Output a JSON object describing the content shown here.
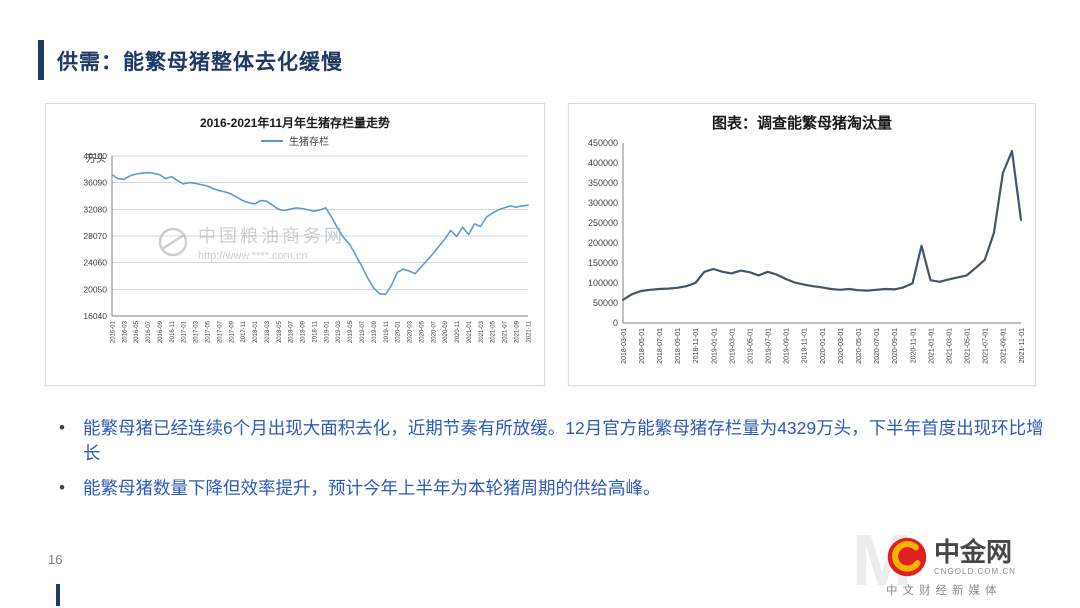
{
  "header": {
    "title": "供需：能繁母猪整体去化缓慢"
  },
  "chart_data": [
    {
      "type": "line",
      "title": "2016-2021年11月年生猪存栏量走势",
      "ylabel": "万头",
      "xlabel": "",
      "ylim": [
        16040,
        40100
      ],
      "yticks": [
        16040,
        20050,
        24060,
        28070,
        32080,
        36090,
        40100
      ],
      "grid": true,
      "legend_position": "top",
      "xtick_every": 2,
      "x": [
        "2016-01",
        "2016-02",
        "2016-03",
        "2016-04",
        "2016-05",
        "2016-06",
        "2016-07",
        "2016-08",
        "2016-09",
        "2016-10",
        "2016-11",
        "2016-12",
        "2017-01",
        "2017-02",
        "2017-03",
        "2017-04",
        "2017-05",
        "2017-06",
        "2017-07",
        "2017-08",
        "2017-09",
        "2017-10",
        "2017-11",
        "2017-12",
        "2018-01",
        "2018-02",
        "2018-03",
        "2018-04",
        "2018-05",
        "2018-06",
        "2018-07",
        "2018-08",
        "2018-09",
        "2018-10",
        "2018-11",
        "2018-12",
        "2019-01",
        "2019-02",
        "2019-03",
        "2019-04",
        "2019-05",
        "2019-06",
        "2019-07",
        "2019-08",
        "2019-09",
        "2019-10",
        "2019-11",
        "2019-12",
        "2020-01",
        "2020-02",
        "2020-03",
        "2020-04",
        "2020-05",
        "2020-06",
        "2020-07",
        "2020-08",
        "2020-09",
        "2020-10",
        "2020-11",
        "2020-12",
        "2021-01",
        "2021-02",
        "2021-03",
        "2021-04",
        "2021-05",
        "2021-06",
        "2021-07",
        "2021-08",
        "2021-09",
        "2021-10",
        "2021-11"
      ],
      "series": [
        {
          "name": "生猪存栏",
          "color": "#5B9BD5",
          "values": [
            37300,
            36700,
            36600,
            37100,
            37400,
            37500,
            37600,
            37500,
            37300,
            36700,
            37000,
            36400,
            35900,
            36100,
            36000,
            35800,
            35600,
            35200,
            34900,
            34700,
            34400,
            33900,
            33400,
            33100,
            32900,
            33400,
            33300,
            32700,
            32100,
            31900,
            32100,
            32300,
            32200,
            32000,
            31800,
            32000,
            32300,
            30800,
            29200,
            27800,
            26800,
            25200,
            23600,
            21800,
            20300,
            19400,
            19300,
            20600,
            22600,
            23100,
            22800,
            22400,
            23400,
            24400,
            25400,
            26500,
            27600,
            28900,
            28000,
            29400,
            28300,
            29900,
            29500,
            30900,
            31500,
            32000,
            32300,
            32600,
            32400,
            32600,
            32700
          ]
        }
      ]
    },
    {
      "type": "line",
      "title": "图表：调查能繁母猪淘汰量",
      "ylabel": "",
      "xlabel": "",
      "ylim": [
        0,
        450000
      ],
      "yticks": [
        0,
        50000,
        100000,
        150000,
        200000,
        250000,
        300000,
        350000,
        400000,
        450000
      ],
      "grid": false,
      "xtick_every": 2,
      "x": [
        "2018-03-01",
        "2018-04-01",
        "2018-05-01",
        "2018-06-01",
        "2018-07-01",
        "2018-08-01",
        "2018-09-01",
        "2018-10-01",
        "2018-11-01",
        "2018-12-01",
        "2019-01-01",
        "2019-02-01",
        "2019-03-01",
        "2019-04-01",
        "2019-05-01",
        "2019-06-01",
        "2019-07-01",
        "2019-08-01",
        "2019-09-01",
        "2019-10-01",
        "2019-11-01",
        "2019-12-01",
        "2020-01-01",
        "2020-02-01",
        "2020-03-01",
        "2020-04-01",
        "2020-05-01",
        "2020-06-01",
        "2020-07-01",
        "2020-08-01",
        "2020-09-01",
        "2020-10-01",
        "2020-11-01",
        "2020-12-01",
        "2021-01-01",
        "2021-02-01",
        "2021-03-01",
        "2021-04-01",
        "2021-05-01",
        "2021-06-01",
        "2021-07-01",
        "2021-08-01",
        "2021-09-01",
        "2021-10-01",
        "2021-11-01"
      ],
      "series": [
        {
          "name": "调查能繁母猪淘汰量",
          "color": "#44546A",
          "values": [
            58000,
            72000,
            80000,
            83000,
            85000,
            86000,
            88000,
            92000,
            100000,
            128000,
            135000,
            128000,
            124000,
            131000,
            127000,
            119000,
            128000,
            121000,
            110000,
            101000,
            96000,
            92000,
            89000,
            85000,
            83000,
            85000,
            82000,
            81000,
            83000,
            85000,
            84000,
            89000,
            99000,
            193000,
            107000,
            103000,
            109000,
            114000,
            119000,
            138000,
            158000,
            225000,
            375000,
            430000,
            258000
          ]
        }
      ]
    }
  ],
  "watermark": {
    "site_name": "中国粮油商务网",
    "site_url": "http://www.****.com.cn"
  },
  "bullets": [
    "能繁母猪已经连续6个月出现大面积去化，近期节奏有所放缓。12月官方能繁母猪存栏量为4329万头，下半年首度出现环比增长",
    "能繁母猪数量下降但效率提升，预计今年上半年为本轮猪周期的供给高峰。"
  ],
  "footer": {
    "page_number": "16"
  },
  "brand": {
    "name": "中金网",
    "domain": "CNGOLD.COM.CN",
    "tagline": "中文财经新媒体",
    "watermark_letter": "M"
  },
  "colors": {
    "accent": "#1F3864",
    "title_text": "#1F3864",
    "bullet_text": "#2E5BB8",
    "left_line": "#5B9BD5",
    "right_line": "#44546A",
    "brand_red": "#E02020",
    "brand_gold": "#F7B500"
  }
}
